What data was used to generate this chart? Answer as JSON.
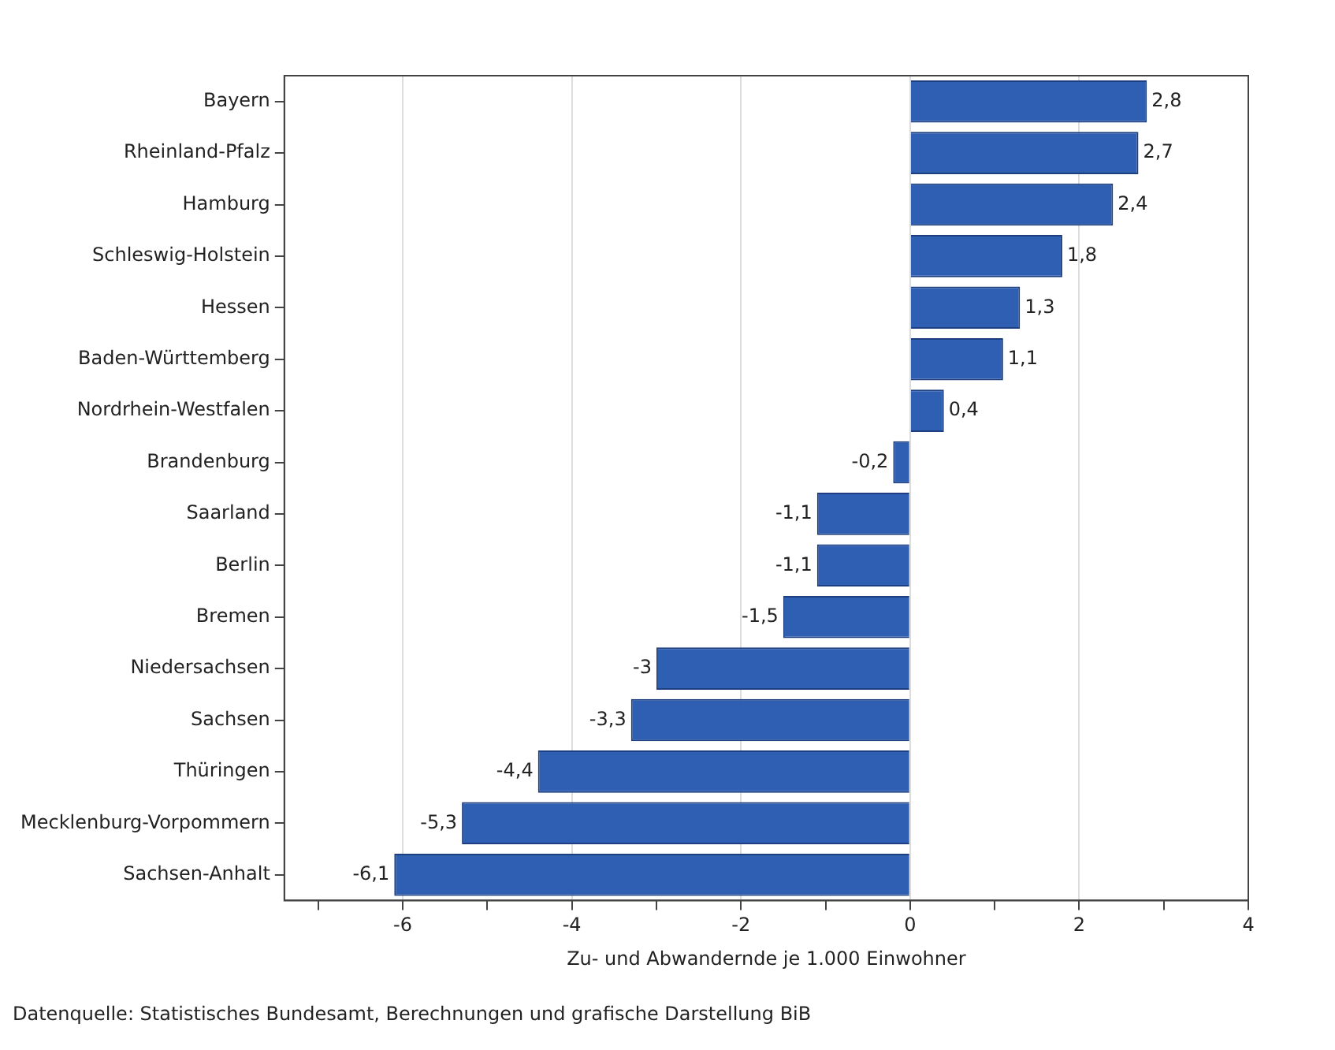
{
  "chart_data": {
    "type": "bar",
    "orientation": "horizontal",
    "xlabel": "Zu- und Abwandernde je 1.000 Einwohner",
    "categories": [
      "Bayern",
      "Rheinland-Pfalz",
      "Hamburg",
      "Schleswig-Holstein",
      "Hessen",
      "Baden-Württemberg",
      "Nordrhein-Westfalen",
      "Brandenburg",
      "Saarland",
      "Berlin",
      "Bremen",
      "Niedersachsen",
      "Sachsen",
      "Thüringen",
      "Mecklenburg-Vorpommern",
      "Sachsen-Anhalt"
    ],
    "values": [
      2.8,
      2.7,
      2.4,
      1.8,
      1.3,
      1.1,
      0.4,
      -0.2,
      -1.1,
      -1.1,
      -1.5,
      -3,
      -3.3,
      -4.4,
      -5.3,
      -6.1
    ],
    "value_labels": [
      "2,8",
      "2,7",
      "2,4",
      "1,8",
      "1,3",
      "1,1",
      "0,4",
      "-0,2",
      "-1,1",
      "-1,1",
      "-1,5",
      "-3",
      "-3,3",
      "-4,4",
      "-5,3",
      "-6,1"
    ],
    "color": "#2f5fb3",
    "xlim": [
      -7.4,
      4
    ],
    "xticks": [
      {
        "value": -7,
        "label": null
      },
      -6,
      {
        "value": -5,
        "label": null
      },
      -4,
      {
        "value": -3,
        "label": null
      },
      -2,
      {
        "value": -1,
        "label": null
      },
      0,
      {
        "value": 1,
        "label": null
      },
      2,
      {
        "value": 3,
        "label": null
      },
      4
    ],
    "grid": "x",
    "legend": false,
    "annotations": [
      "Datenquelle: Statistisches Bundesamt, Berechnungen und grafische Darstellung BiB"
    ]
  }
}
